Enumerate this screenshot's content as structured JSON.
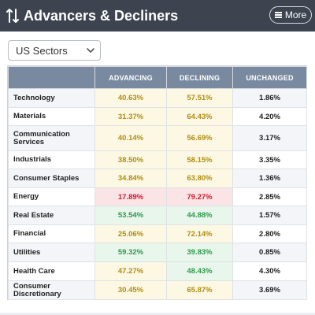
{
  "header": {
    "title": "Advancers & Decliners",
    "more_label": "More",
    "bg_color": "#3d4450"
  },
  "filter": {
    "selected": "US Sectors"
  },
  "table": {
    "columns": [
      "",
      "ADVANCING",
      "DECLINING",
      "UNCHANGED"
    ],
    "rows": [
      {
        "sector": "Technology",
        "advancing": "40.63%",
        "declining": "57.51%",
        "unchanged": "1.86%",
        "adv_color": "yellow",
        "dec_color": "yellow"
      },
      {
        "sector": "Materials",
        "advancing": "31.37%",
        "declining": "64.43%",
        "unchanged": "4.20%",
        "adv_color": "yellow",
        "dec_color": "yellow"
      },
      {
        "sector": "Communication Services",
        "advancing": "40.14%",
        "declining": "56.69%",
        "unchanged": "3.17%",
        "adv_color": "yellow",
        "dec_color": "yellow"
      },
      {
        "sector": "Industrials",
        "advancing": "38.50%",
        "declining": "58.15%",
        "unchanged": "3.35%",
        "adv_color": "yellow",
        "dec_color": "yellow"
      },
      {
        "sector": "Consumer Staples",
        "advancing": "34.84%",
        "declining": "63.80%",
        "unchanged": "1.36%",
        "adv_color": "yellow",
        "dec_color": "yellow"
      },
      {
        "sector": "Energy",
        "advancing": "17.89%",
        "declining": "79.27%",
        "unchanged": "2.85%",
        "adv_color": "red",
        "dec_color": "red"
      },
      {
        "sector": "Real Estate",
        "advancing": "53.54%",
        "declining": "44.88%",
        "unchanged": "1.57%",
        "adv_color": "green",
        "dec_color": "green"
      },
      {
        "sector": "Financial",
        "advancing": "25.06%",
        "declining": "72.14%",
        "unchanged": "2.80%",
        "adv_color": "yellow",
        "dec_color": "yellow"
      },
      {
        "sector": "Utilities",
        "advancing": "59.32%",
        "declining": "39.83%",
        "unchanged": "0.85%",
        "adv_color": "green",
        "dec_color": "green"
      },
      {
        "sector": "Health Care",
        "advancing": "47.27%",
        "declining": "48.43%",
        "unchanged": "4.30%",
        "adv_color": "yellow",
        "dec_color": "green"
      },
      {
        "sector": "Consumer Discretionary",
        "advancing": "30.45%",
        "declining": "65.87%",
        "unchanged": "3.69%",
        "adv_color": "yellow",
        "dec_color": "yellow"
      }
    ]
  },
  "colors": {
    "yellow_text": "#b08d14",
    "green_text": "#2e9a4b",
    "red_text": "#d01b2b",
    "header_row": "#798aa0"
  }
}
